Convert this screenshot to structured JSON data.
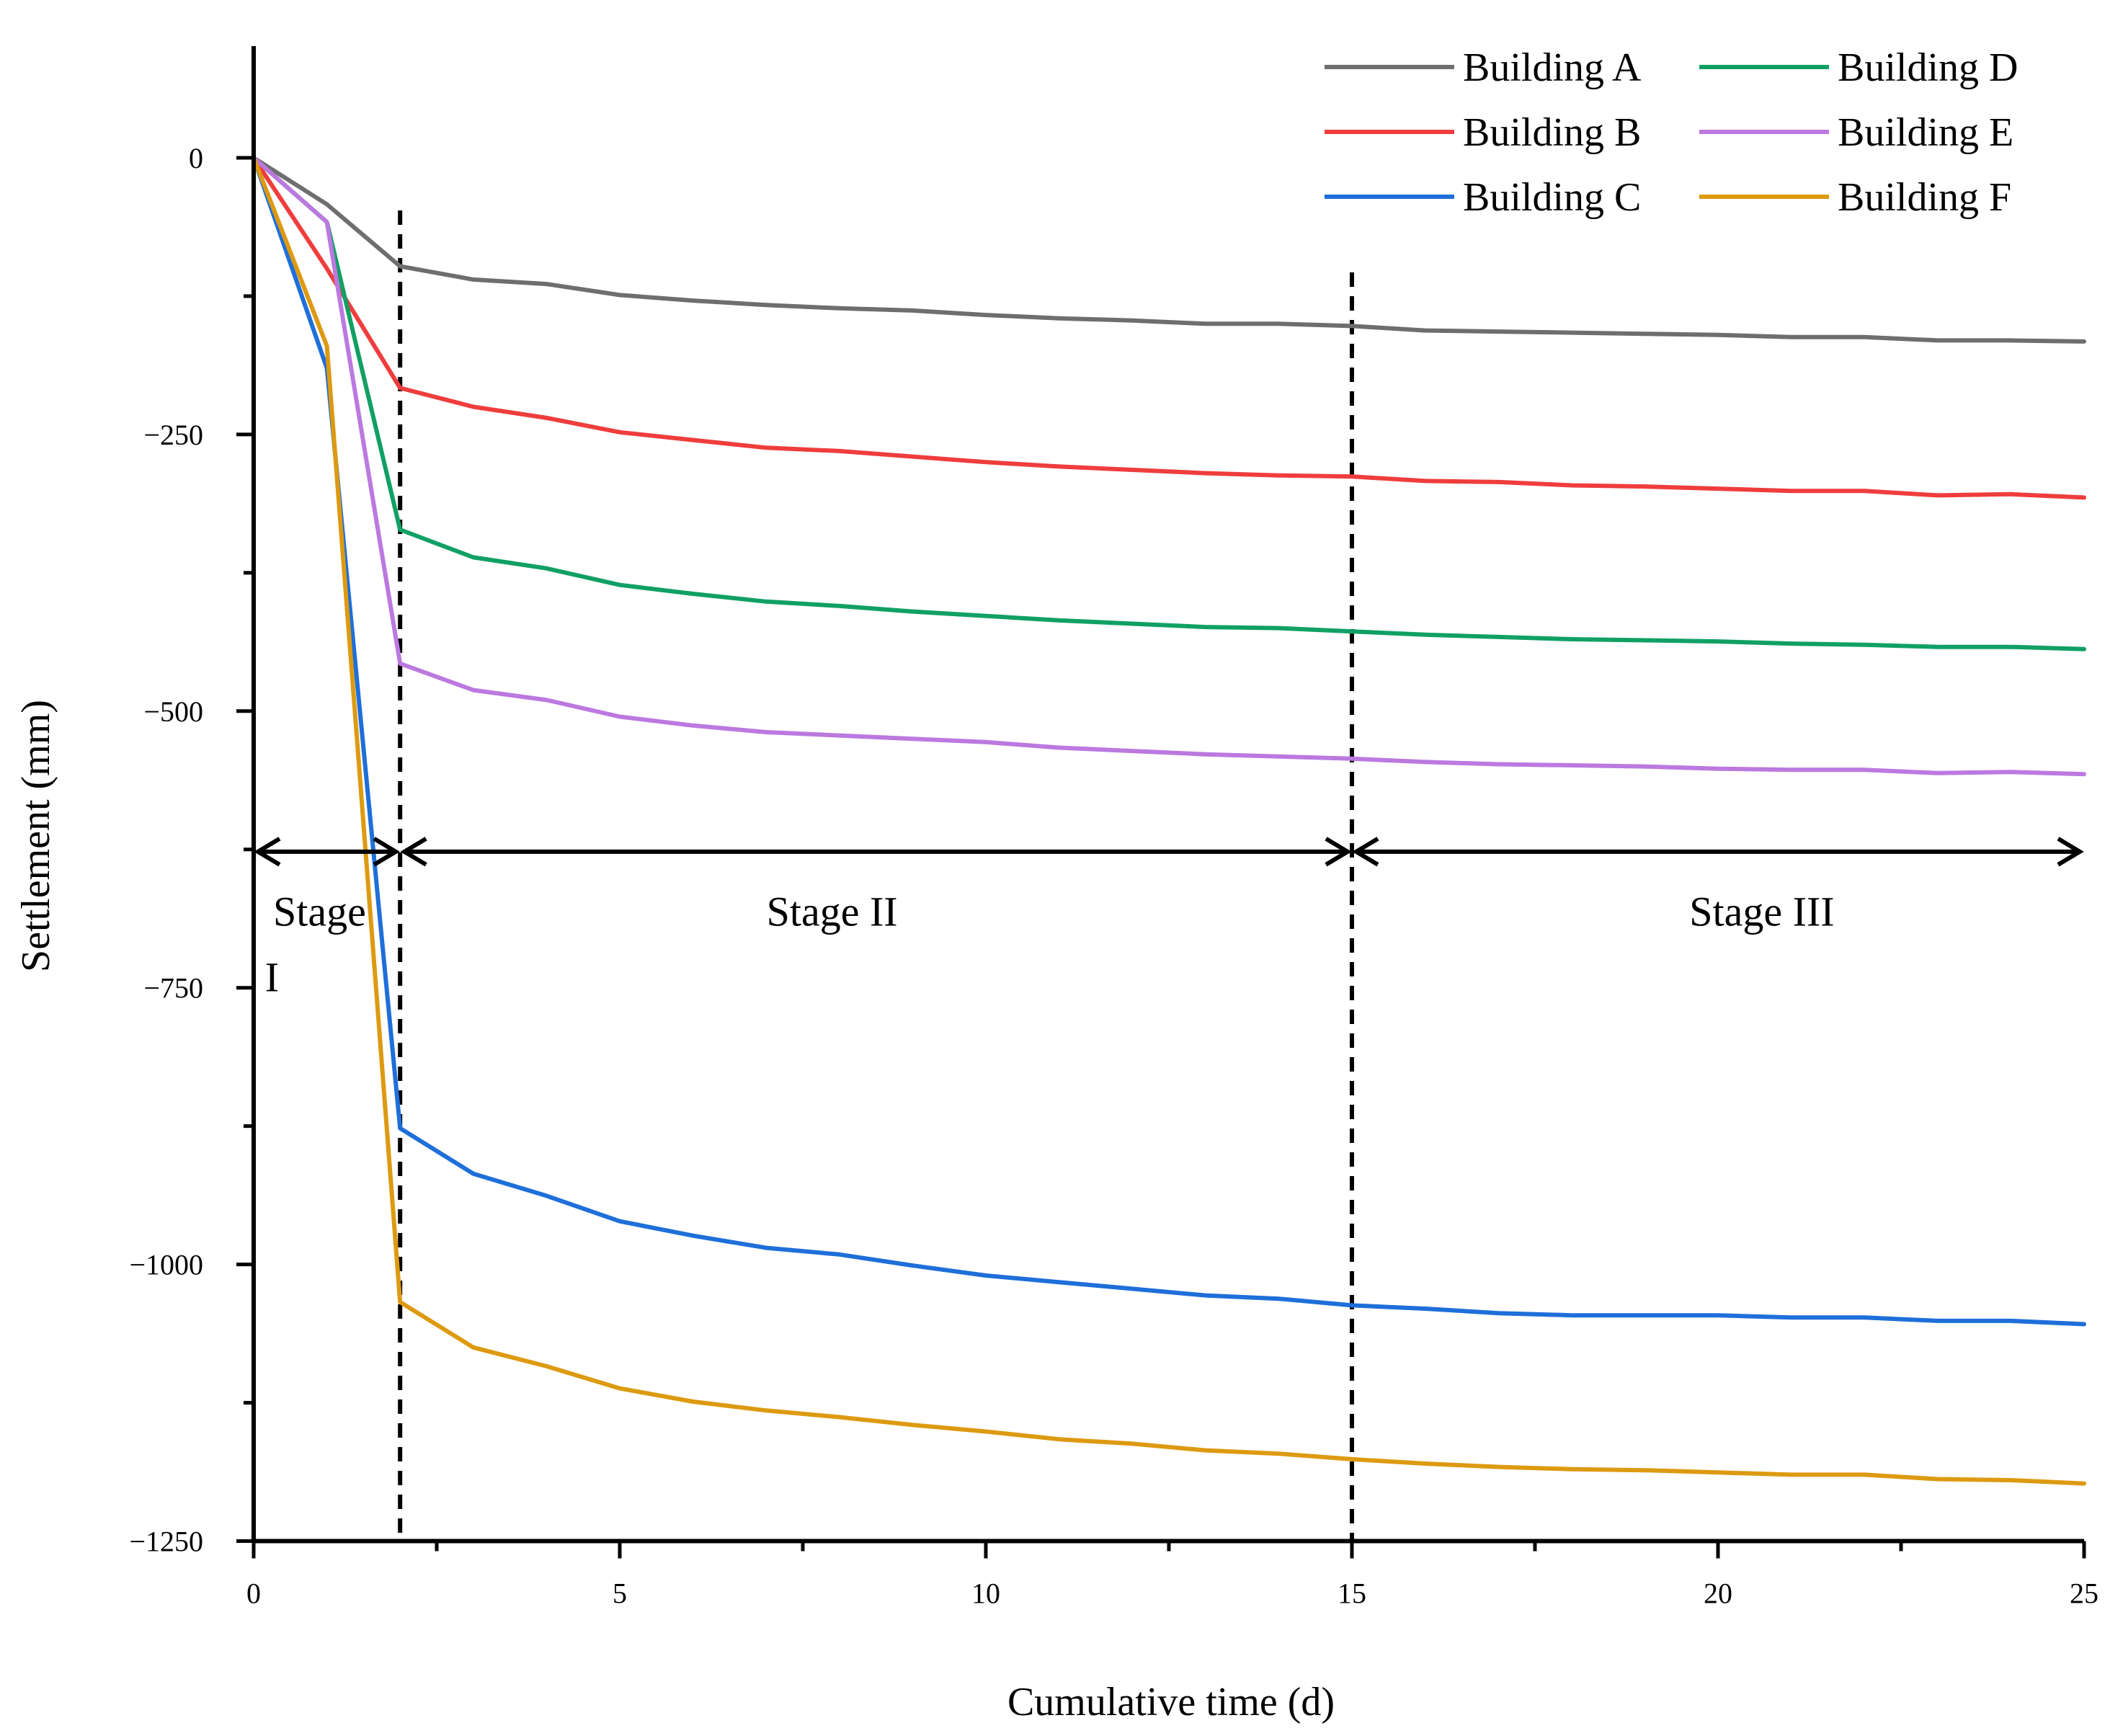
{
  "chart_data": {
    "type": "line",
    "xlabel": "Cumulative time (d)",
    "ylabel": "Settlement (mm)",
    "xlim": [
      0,
      25
    ],
    "ylim": [
      -1250,
      100
    ],
    "x_ticks": [
      0,
      5,
      10,
      15,
      20,
      25
    ],
    "x_tick_labels": [
      "0",
      "5",
      "10",
      "15",
      "20",
      "25"
    ],
    "y_ticks": [
      0,
      -250,
      -500,
      -750,
      -1000,
      -1250
    ],
    "y_tick_labels": [
      "0",
      "−250",
      "−500",
      "−750",
      "−1000",
      "−1250"
    ],
    "legend_position": "top-right",
    "x": [
      0,
      1,
      2,
      3,
      4,
      5,
      6,
      7,
      8,
      9,
      10,
      11,
      12,
      13,
      14,
      15,
      16,
      17,
      18,
      19,
      20,
      21,
      22,
      23,
      24,
      25
    ],
    "series": [
      {
        "name": "Building A",
        "color": "#6e6e6e",
        "values": [
          0,
          -42,
          -98,
          -110,
          -114,
          -124,
          -129,
          -133,
          -136,
          -138,
          -142,
          -145,
          -147,
          -150,
          -150,
          -152,
          -156,
          -157,
          -158,
          -159,
          -160,
          -162,
          -162,
          -165,
          -165,
          -166
        ]
      },
      {
        "name": "Building B",
        "color": "#ef3d3d",
        "values": [
          0,
          -100,
          -208,
          -225,
          -235,
          -248,
          -255,
          -262,
          -265,
          -270,
          -275,
          -279,
          -282,
          -285,
          -287,
          -288,
          -292,
          -293,
          -296,
          -297,
          -299,
          -301,
          -301,
          -305,
          -304,
          -307
        ]
      },
      {
        "name": "Building C",
        "color": "#1e6fd9",
        "values": [
          0,
          -190,
          -877,
          -918,
          -938,
          -961,
          -974,
          -985,
          -991,
          -1001,
          -1010,
          -1016,
          -1022,
          -1028,
          -1031,
          -1037,
          -1040,
          -1044,
          -1046,
          -1046,
          -1046,
          -1048,
          -1048,
          -1051,
          -1051,
          -1054
        ]
      },
      {
        "name": "Building D",
        "color": "#11a064",
        "values": [
          0,
          -58,
          -336,
          -361,
          -371,
          -386,
          -394,
          -401,
          -405,
          -410,
          -414,
          -418,
          -421,
          -424,
          -425,
          -428,
          -431,
          -433,
          -435,
          -436,
          -437,
          -439,
          -440,
          -442,
          -442,
          -444
        ]
      },
      {
        "name": "Building E",
        "color": "#bb79e0",
        "values": [
          0,
          -58,
          -457,
          -481,
          -490,
          -505,
          -513,
          -519,
          -522,
          -525,
          -528,
          -533,
          -536,
          -539,
          -541,
          -543,
          -546,
          -548,
          -549,
          -550,
          -552,
          -553,
          -553,
          -556,
          -555,
          -557
        ]
      },
      {
        "name": "Building F",
        "color": "#dd9a10",
        "values": [
          0,
          -170,
          -1034,
          -1075,
          -1092,
          -1112,
          -1124,
          -1132,
          -1138,
          -1145,
          -1151,
          -1158,
          -1162,
          -1168,
          -1171,
          -1176,
          -1180,
          -1183,
          -1185,
          -1186,
          -1188,
          -1190,
          -1190,
          -1194,
          -1195,
          -1198
        ]
      }
    ],
    "stage_dividers_x": [
      2,
      15
    ],
    "stage_arrow_y": -627,
    "annotations": [
      {
        "text": "Stage",
        "x": 0.9,
        "y": -681
      },
      {
        "text": "I",
        "x": 0.25,
        "y": -740
      },
      {
        "text": "Stage II",
        "x": 7.9,
        "y": -681
      },
      {
        "text": "Stage III",
        "x": 20.6,
        "y": -681
      }
    ]
  }
}
